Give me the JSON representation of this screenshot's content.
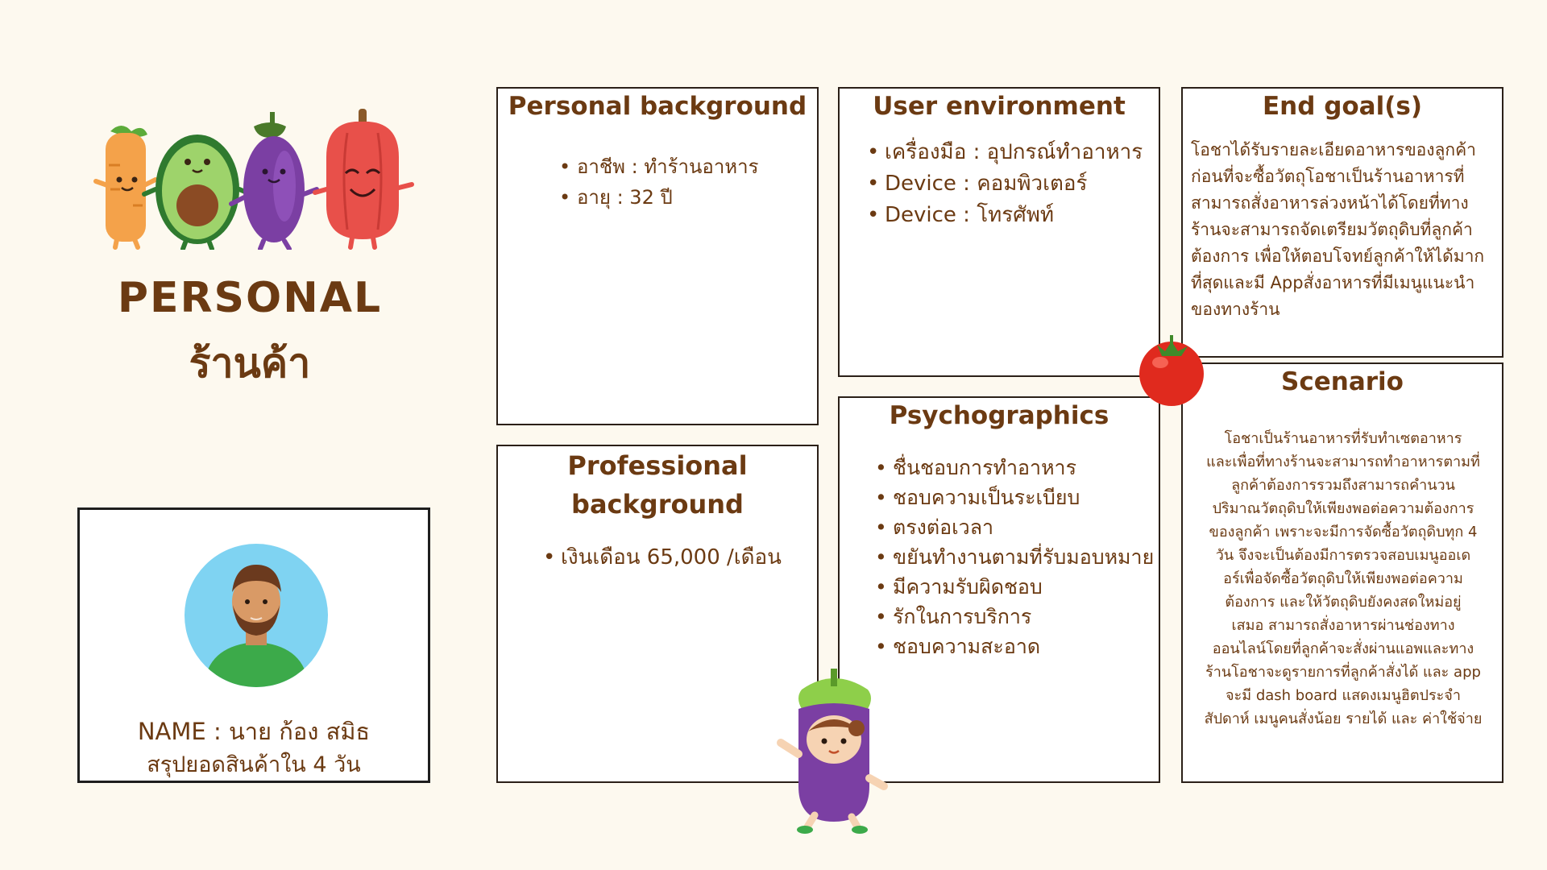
{
  "hero": {
    "title": "PERSONAL",
    "subtitle": "ร้านค้า"
  },
  "profile": {
    "name_line": "NAME : นาย ก้อง สมิธ",
    "summary_line": "สรุปยอดสินค้าใน 4 วัน"
  },
  "personal_background": {
    "title": "Personal background",
    "items": [
      "อาชีพ : ทำร้านอาหาร",
      "อายุ :  32 ปี"
    ]
  },
  "professional_background": {
    "title_line1": "Professional",
    "title_line2": "background",
    "items": [
      "เงินเดือน 65,000 /เดือน"
    ]
  },
  "user_environment": {
    "title": "User environment",
    "items": [
      "เครื่องมือ : อุปกรณ์ทำอาหาร",
      "Device : คอมพิวเตอร์",
      "Device : โทรศัพท์"
    ]
  },
  "psychographics": {
    "title": "Psychographics",
    "items": [
      "ชื่นชอบการทำอาหาร",
      "ชอบความเป็นระเบียบ",
      "ตรงต่อเวลา",
      "ขยันทำงานตามที่รับมอบหมาย",
      "มีความรับผิดชอบ",
      "รักในการบริการ",
      "ชอบความสะอาด"
    ]
  },
  "end_goal": {
    "title": "End goal(s)",
    "lines": [
      "โอชาได้รับรายละเอียดอาหารของลูกค้า",
      "ก่อนที่จะซื้อวัตถุโอชาเป็นร้านอาหารที่",
      "สามารถสั่งอาหารล่วงหน้าได้โดยที่ทาง",
      "ร้านจะสามารถจัดเตรียมวัตถุดิบที่ลูกค้า",
      "ต้องการ เพื่อให้ตอบโจทย์ลูกค้าให้ได้มาก",
      "ที่สุดและมี Appสั่งอาหารที่มีเมนูแนะนำ",
      "ของทางร้าน"
    ]
  },
  "scenario": {
    "title": "Scenario",
    "lines": [
      "โอชาเป็นร้านอาหารที่รับทำเซตอาหาร",
      "และเพื่อที่ทางร้านจะสามารถทำอาหารตามที่",
      "ลูกค้าต้องการรวมถึงสามารถคำนวน",
      "ปริมาณวัตถุดิบให้เพียงพอต่อความต้องการ",
      "ของลูกค้า เพราะจะมีการจัดซื้อวัตถุดิบทุก 4",
      "วัน จึงจะเป็นต้องมีการตรวจสอบเมนูออเด",
      "อร์เพื่อจัดซื้อวัตถุดิบให้เพียงพอต่อความ",
      "ต้องการ และให้วัตถุดิบยังคงสดใหม่อยู่",
      "เสมอ สามารถสั่งอาหารผ่านช่องทาง",
      "ออนไลน์โดยที่ลูกค้าจะสั่งผ่านแอพและทาง",
      "ร้านโอชาจะดูรายการที่ลูกค้าสั่งได้ และ app",
      "จะมี dash board แสดงเมนูฮิตประจำ",
      "สัปดาห์ เมนูคนสั่งน้อย รายได้ และ ค่าใช้จ่าย"
    ]
  },
  "colors": {
    "background": "#fdf9ef",
    "accent_text": "#6b3a12",
    "border": "#2b2018",
    "avatar_bg": "#7fd3f2",
    "shirt": "#3caa4a"
  }
}
